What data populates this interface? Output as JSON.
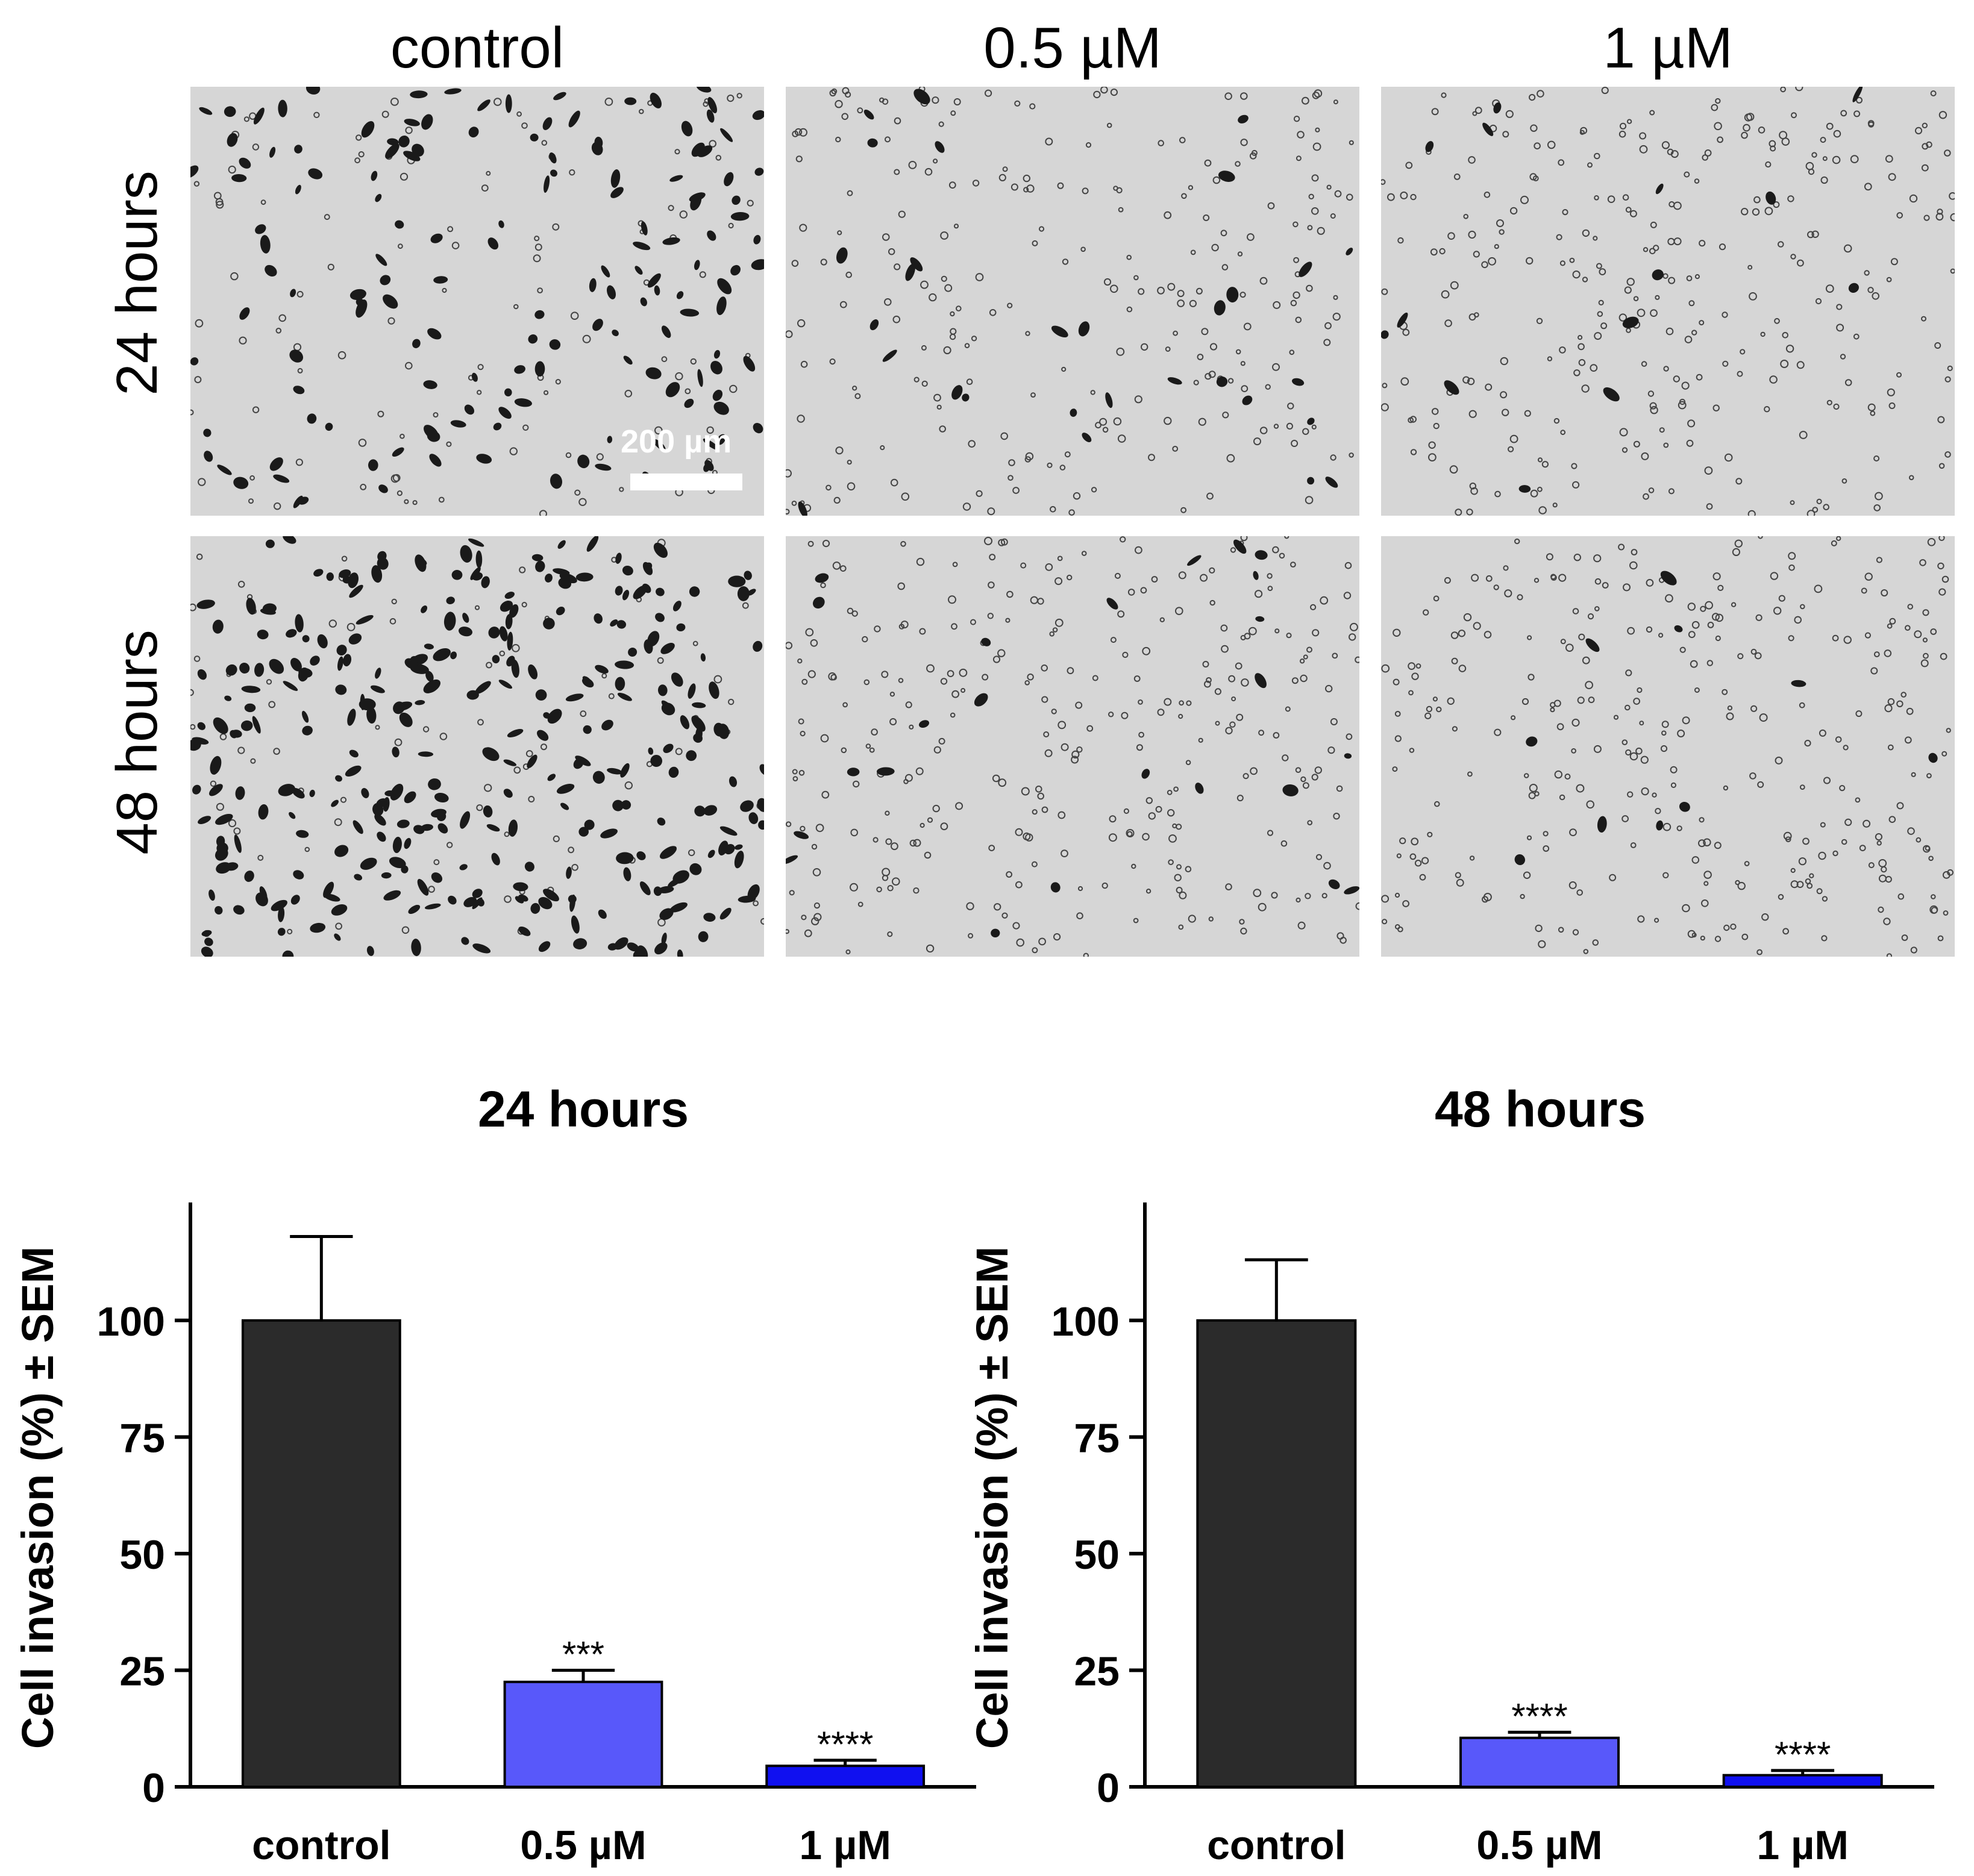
{
  "micrographs": {
    "columns": [
      "control",
      "0.5 µM",
      "1 µM"
    ],
    "rows": [
      "24 hours",
      "48 hours"
    ],
    "scale_bar_label": "200 µm"
  },
  "chart_data": [
    {
      "type": "bar",
      "title": "24 hours",
      "categories": [
        "control",
        "0.5 µM",
        "1 µM"
      ],
      "values": [
        100,
        22.5,
        4.5
      ],
      "errors": [
        18,
        2.5,
        1.2
      ],
      "significance": [
        "",
        "***",
        "****"
      ],
      "colors": [
        "#2b2b2b",
        "#5858fa",
        "#1010f0"
      ],
      "ylabel": "Cell invasion (%) ± SEM",
      "xlabel": "",
      "yticks": [
        0,
        25,
        50,
        75,
        100
      ],
      "ylim": [
        0,
        124
      ],
      "grid": false,
      "legend": "none"
    },
    {
      "type": "bar",
      "title": "48 hours",
      "categories": [
        "control",
        "0.5 µM",
        "1 µM"
      ],
      "values": [
        100,
        10.5,
        2.5
      ],
      "errors": [
        13,
        1.2,
        1
      ],
      "significance": [
        "",
        "****",
        "****"
      ],
      "colors": [
        "#2b2b2b",
        "#5858fa",
        "#1010f0"
      ],
      "ylabel": "Cell invasion (%) ± SEM",
      "xlabel": "",
      "yticks": [
        0,
        25,
        50,
        75,
        100
      ],
      "ylim": [
        0,
        124
      ],
      "grid": false,
      "legend": "none"
    }
  ]
}
